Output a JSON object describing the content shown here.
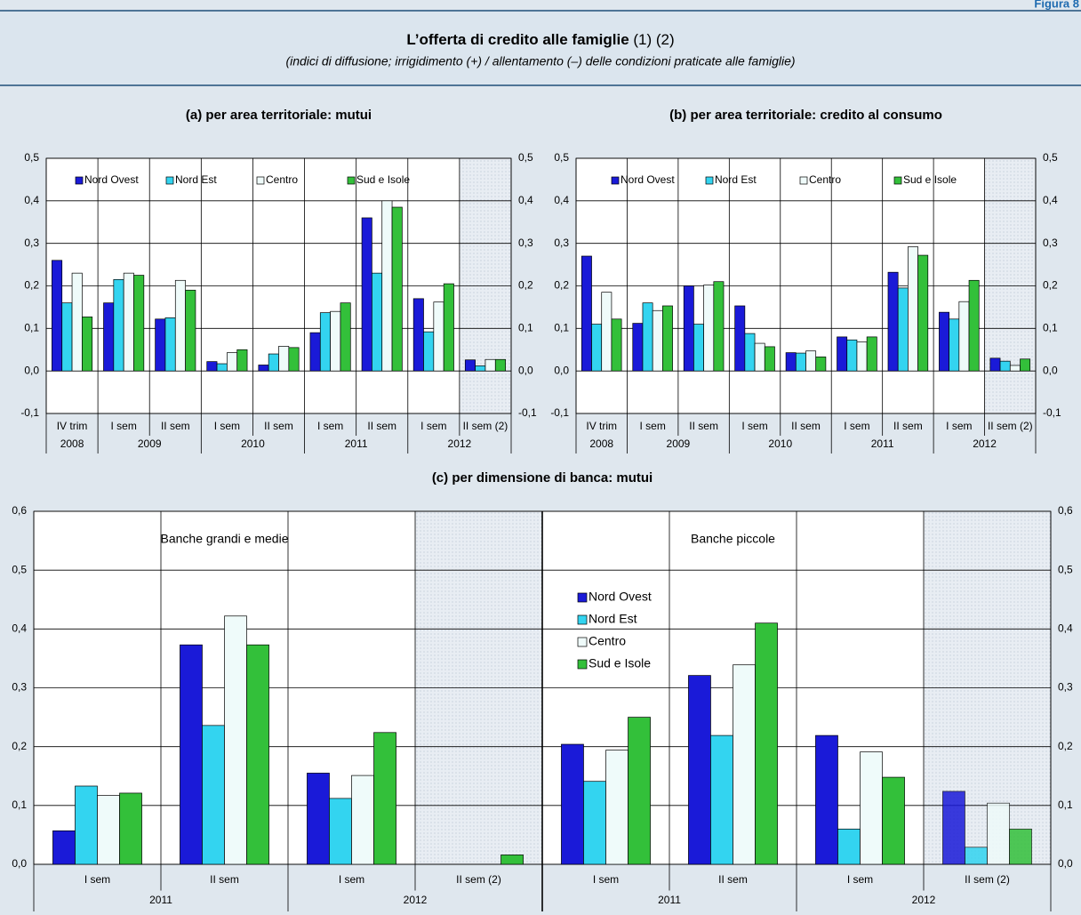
{
  "figure_label": "Figura 8",
  "title": "L’offerta di credito alle famiglie",
  "title_notes": "(1) (2)",
  "subtitle": "(indici di diffusione; irrigidimento (+) / allentamento (–) delle condizioni praticate alle famiglie)",
  "chart_data": [
    {
      "type": "bar",
      "title": "(a) per area territoriale: mutui",
      "categories": [
        "IV trim",
        "I sem",
        "II sem",
        "I sem",
        "II sem",
        "I sem",
        "II sem",
        "I sem",
        "II sem (2)"
      ],
      "category_groups": [
        "2008",
        "2009",
        null,
        "2010",
        null,
        "2011",
        null,
        "2012",
        null
      ],
      "series": [
        {
          "name": "Nord Ovest",
          "color": "#1a1ad8",
          "values": [
            0.26,
            0.16,
            0.122,
            0.022,
            0.014,
            0.09,
            0.36,
            0.17,
            0.026
          ]
        },
        {
          "name": "Nord Est",
          "color": "#33d4f0",
          "values": [
            0.16,
            0.215,
            0.125,
            0.017,
            0.04,
            0.137,
            0.23,
            0.092,
            0.012
          ]
        },
        {
          "name": "Centro",
          "color": "#effbfa",
          "values": [
            0.23,
            0.23,
            0.213,
            0.043,
            0.058,
            0.14,
            0.4,
            0.162,
            0.027
          ]
        },
        {
          "name": "Sud e Isole",
          "color": "#33c03a",
          "values": [
            0.127,
            0.225,
            0.19,
            0.05,
            0.055,
            0.16,
            0.385,
            0.205,
            0.027
          ]
        }
      ],
      "ylim": [
        -0.1,
        0.5
      ],
      "yticks": [
        {
          "value": -0.1,
          "label": "-0,1"
        },
        {
          "value": 0,
          "label": "0,0"
        },
        {
          "value": 0.1,
          "label": "0,1"
        },
        {
          "value": 0.2,
          "label": "0,2"
        },
        {
          "value": 0.3,
          "label": "0,3"
        },
        {
          "value": 0.4,
          "label": "0,4"
        },
        {
          "value": 0.5,
          "label": "0,5"
        }
      ],
      "grid": true,
      "legend": "top",
      "shade_last": true
    },
    {
      "type": "bar",
      "title": "(b) per area territoriale: credito al consumo",
      "categories": [
        "IV trim",
        "I sem",
        "II sem",
        "I sem",
        "II sem",
        "I sem",
        "II sem",
        "I sem",
        "II sem (2)"
      ],
      "category_groups": [
        "2008",
        "2009",
        null,
        "2010",
        null,
        "2011",
        null,
        "2012",
        null
      ],
      "series": [
        {
          "name": "Nord Ovest",
          "color": "#1a1ad8",
          "values": [
            0.27,
            0.112,
            0.2,
            0.153,
            0.043,
            0.08,
            0.232,
            0.138,
            0.03
          ]
        },
        {
          "name": "Nord Est",
          "color": "#33d4f0",
          "values": [
            0.11,
            0.16,
            0.11,
            0.088,
            0.042,
            0.073,
            0.195,
            0.122,
            0.023
          ]
        },
        {
          "name": "Centro",
          "color": "#effbfa",
          "values": [
            0.185,
            0.142,
            0.202,
            0.065,
            0.047,
            0.068,
            0.292,
            0.163,
            0.013
          ]
        },
        {
          "name": "Sud e Isole",
          "color": "#33c03a",
          "values": [
            0.122,
            0.153,
            0.21,
            0.057,
            0.033,
            0.08,
            0.272,
            0.213,
            0.028
          ]
        }
      ],
      "ylim": [
        -0.1,
        0.5
      ],
      "yticks": [
        {
          "value": -0.1,
          "label": "-0,1"
        },
        {
          "value": 0,
          "label": "0,0"
        },
        {
          "value": 0.1,
          "label": "0,1"
        },
        {
          "value": 0.2,
          "label": "0,2"
        },
        {
          "value": 0.3,
          "label": "0,3"
        },
        {
          "value": 0.4,
          "label": "0,4"
        },
        {
          "value": 0.5,
          "label": "0,5"
        }
      ],
      "grid": true,
      "legend": "top",
      "shade_last": true
    },
    {
      "type": "bar",
      "title": "(c) per dimensione di banca: mutui",
      "panels": [
        "Banche grandi e medie",
        "Banche piccole"
      ],
      "categories": [
        "I sem",
        "II sem",
        "I sem",
        "II sem (2)",
        "I sem",
        "II sem",
        "I sem",
        "II sem (2)"
      ],
      "category_groups": [
        "2011",
        null,
        "2012",
        null,
        "2011",
        null,
        "2012",
        null
      ],
      "series": [
        {
          "name": "Nord Ovest",
          "color": "#1a1ad8",
          "values": [
            0.057,
            0.373,
            0.155,
            0,
            0.204,
            0.321,
            0.219,
            0.124
          ]
        },
        {
          "name": "Nord Est",
          "color": "#33d4f0",
          "values": [
            0.133,
            0.236,
            0.112,
            0,
            0.141,
            0.219,
            0.06,
            0.029
          ]
        },
        {
          "name": "Centro",
          "color": "#effbfa",
          "values": [
            0.117,
            0.422,
            0.151,
            0,
            0.194,
            0.339,
            0.191,
            0.104
          ]
        },
        {
          "name": "Sud e Isole",
          "color": "#33c03a",
          "values": [
            0.121,
            0.373,
            0.224,
            0.016,
            0.25,
            0.41,
            0.148,
            0.06
          ]
        }
      ],
      "ylim": [
        0,
        0.6
      ],
      "yticks": [
        {
          "value": 0,
          "label": "0,0"
        },
        {
          "value": 0.1,
          "label": "0,1"
        },
        {
          "value": 0.2,
          "label": "0,2"
        },
        {
          "value": 0.3,
          "label": "0,3"
        },
        {
          "value": 0.4,
          "label": "0,4"
        },
        {
          "value": 0.5,
          "label": "0,5"
        },
        {
          "value": 0.6,
          "label": "0,6"
        }
      ],
      "grid": true,
      "legend": "center",
      "shade_last": true
    }
  ]
}
